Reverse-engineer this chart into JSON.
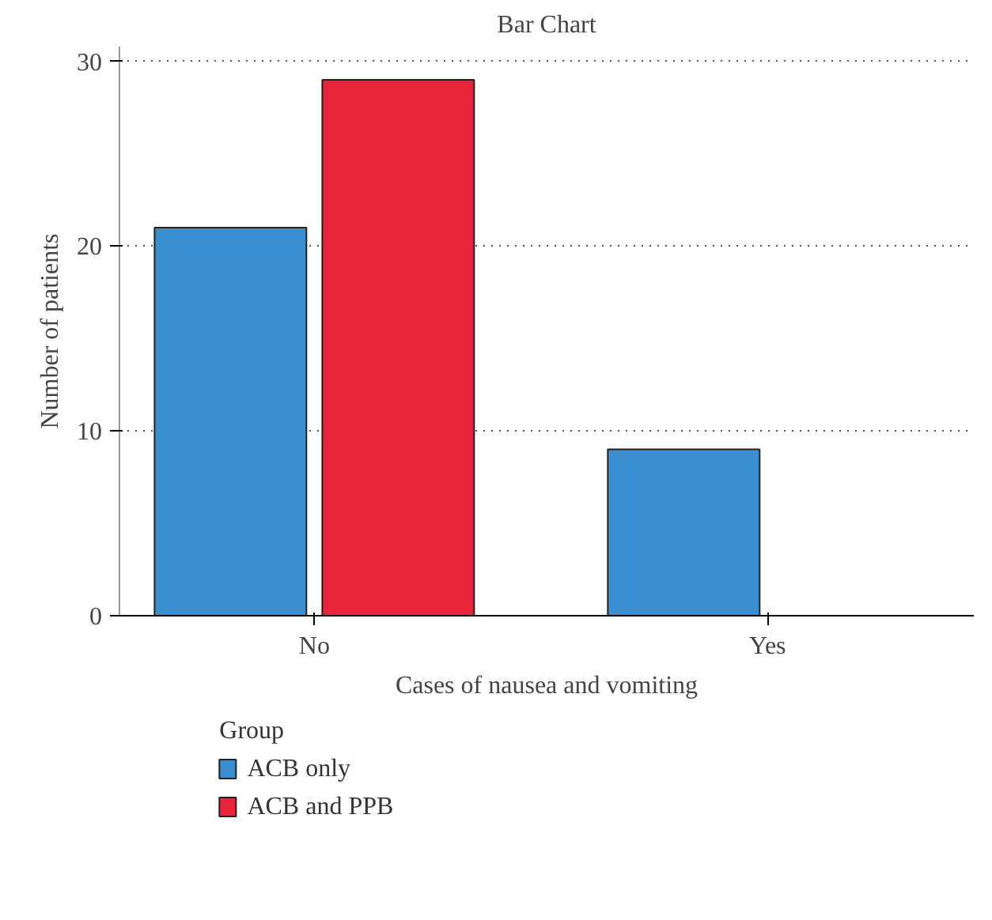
{
  "chart_data": {
    "type": "bar",
    "title": "Bar Chart",
    "xlabel": "Cases of nausea and vomiting",
    "ylabel": "Number of patients",
    "legend_title": "Group",
    "categories": [
      "No",
      "Yes"
    ],
    "series": [
      {
        "name": "ACB only",
        "color": "#3a8fd1",
        "values": [
          21,
          9
        ]
      },
      {
        "name": "ACB and PPB",
        "color": "#e8253c",
        "values": [
          29,
          0
        ]
      }
    ],
    "ylim": [
      0,
      30.8
    ],
    "yticks": [
      0,
      10,
      20,
      30
    ],
    "grid": "y",
    "legend": "bottom left"
  }
}
